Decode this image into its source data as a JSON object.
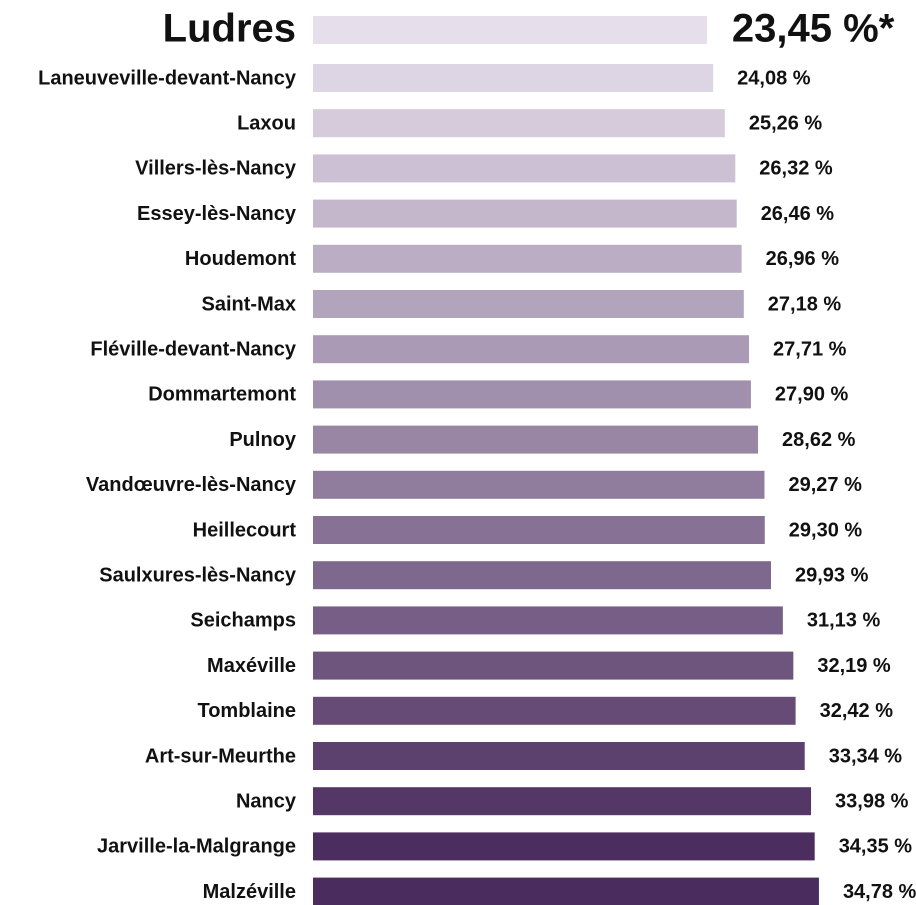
{
  "chart_data": {
    "type": "hbar",
    "categories": [
      "Ludres",
      "Laneuveville-devant-Nancy",
      "Laxou",
      "Villers-lès-Nancy",
      "Essey-lès-Nancy",
      "Houdemont",
      "Saint-Max",
      "Fléville-devant-Nancy",
      "Dommartemont",
      "Pulnoy",
      "Vandœuvre-lès-Nancy",
      "Heillecourt",
      "Saulxures-lès-Nancy",
      "Seichamps",
      "Maxéville",
      "Tomblaine",
      "Art-sur-Meurthe",
      "Nancy",
      "Jarville-la-Malgrange",
      "Malzéville"
    ],
    "values": [
      23.45,
      24.08,
      25.26,
      26.32,
      26.46,
      26.96,
      27.18,
      27.71,
      27.9,
      28.62,
      29.27,
      29.3,
      29.93,
      31.13,
      32.19,
      32.42,
      33.34,
      33.98,
      34.35,
      34.78
    ],
    "value_labels": [
      "23,45 %*",
      "24,08 %",
      "25,26 %",
      "26,32 %",
      "26,46 %",
      "26,96 %",
      "27,18 %",
      "27,71 %",
      "27,90 %",
      "28,62 %",
      "29,27 %",
      "29,30 %",
      "29,93 %",
      "31,13 %",
      "32,19 %",
      "32,42 %",
      "33,34 %",
      "33,98 %",
      "34,35 %",
      "34,78 %"
    ],
    "colors": [
      "#e6dfeb",
      "#ddd5e3",
      "#d5cbdb",
      "#ccc1d4",
      "#c4b7cc",
      "#bbaec4",
      "#b2a4bc",
      "#aa9ab5",
      "#a190ad",
      "#9986a5",
      "#907c9d",
      "#877295",
      "#7f688e",
      "#765e86",
      "#6d557e",
      "#654b76",
      "#5c416f",
      "#543767",
      "#4b2d5f",
      "#4a2c5e"
    ],
    "xlim": [
      -16.4,
      36
    ]
  }
}
